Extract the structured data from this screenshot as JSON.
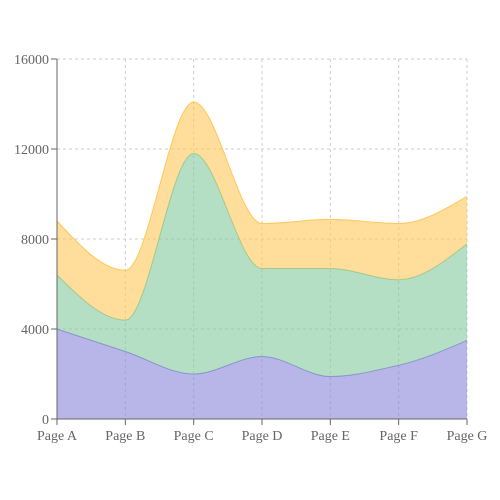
{
  "chart_data": {
    "type": "area",
    "stacked": true,
    "categories": [
      "Page A",
      "Page B",
      "Page C",
      "Page D",
      "Page E",
      "Page F",
      "Page G"
    ],
    "series": [
      {
        "color": "#8884d8",
        "values": [
          4000,
          3000,
          2000,
          2780,
          1890,
          2390,
          3490
        ]
      },
      {
        "color": "#82ca9d",
        "values": [
          2400,
          1398,
          9800,
          3908,
          4800,
          3800,
          4300
        ]
      },
      {
        "color": "#ffc658",
        "values": [
          2400,
          2210,
          2290,
          2000,
          2181,
          2500,
          2100
        ]
      }
    ],
    "y_ticks": [
      "0",
      "4000",
      "8000",
      "12000",
      "16000"
    ],
    "ylim": [
      0,
      16000
    ],
    "grid": true,
    "legend": "none"
  }
}
